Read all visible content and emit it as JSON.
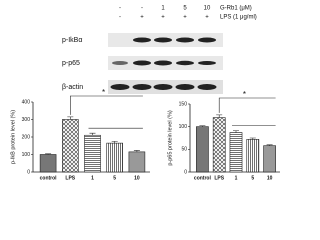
{
  "blot": {
    "treatments": [
      {
        "label": "G-Rb1 (μM)",
        "values": [
          "-",
          "-",
          "1",
          "5",
          "10"
        ]
      },
      {
        "label": "LPS (1 μg/ml)",
        "values": [
          "-",
          "+",
          "+",
          "+",
          "+"
        ]
      }
    ],
    "rows": [
      "p-IkBα",
      "p-p65",
      "β-actin"
    ]
  },
  "chart_data": [
    {
      "type": "bar",
      "y_label": "p-IkB protein level (%)",
      "categories": [
        "control",
        "LPS",
        "1",
        "5",
        "10"
      ],
      "values": [
        100,
        300,
        210,
        165,
        115
      ],
      "errors": [
        4,
        15,
        12,
        10,
        8
      ],
      "ylim": [
        0,
        400
      ],
      "yticks": [
        0,
        100,
        200,
        300,
        400
      ],
      "annotation": "*"
    },
    {
      "type": "bar",
      "y_label": "p-p65 protein level (%)",
      "categories": [
        "control",
        "LPS",
        "1",
        "5",
        "10"
      ],
      "values": [
        100,
        120,
        87,
        72,
        58
      ],
      "errors": [
        2,
        6,
        4,
        3,
        2
      ],
      "ylim": [
        0,
        150
      ],
      "yticks": [
        0,
        50,
        100,
        150
      ],
      "annotation": "*"
    }
  ]
}
